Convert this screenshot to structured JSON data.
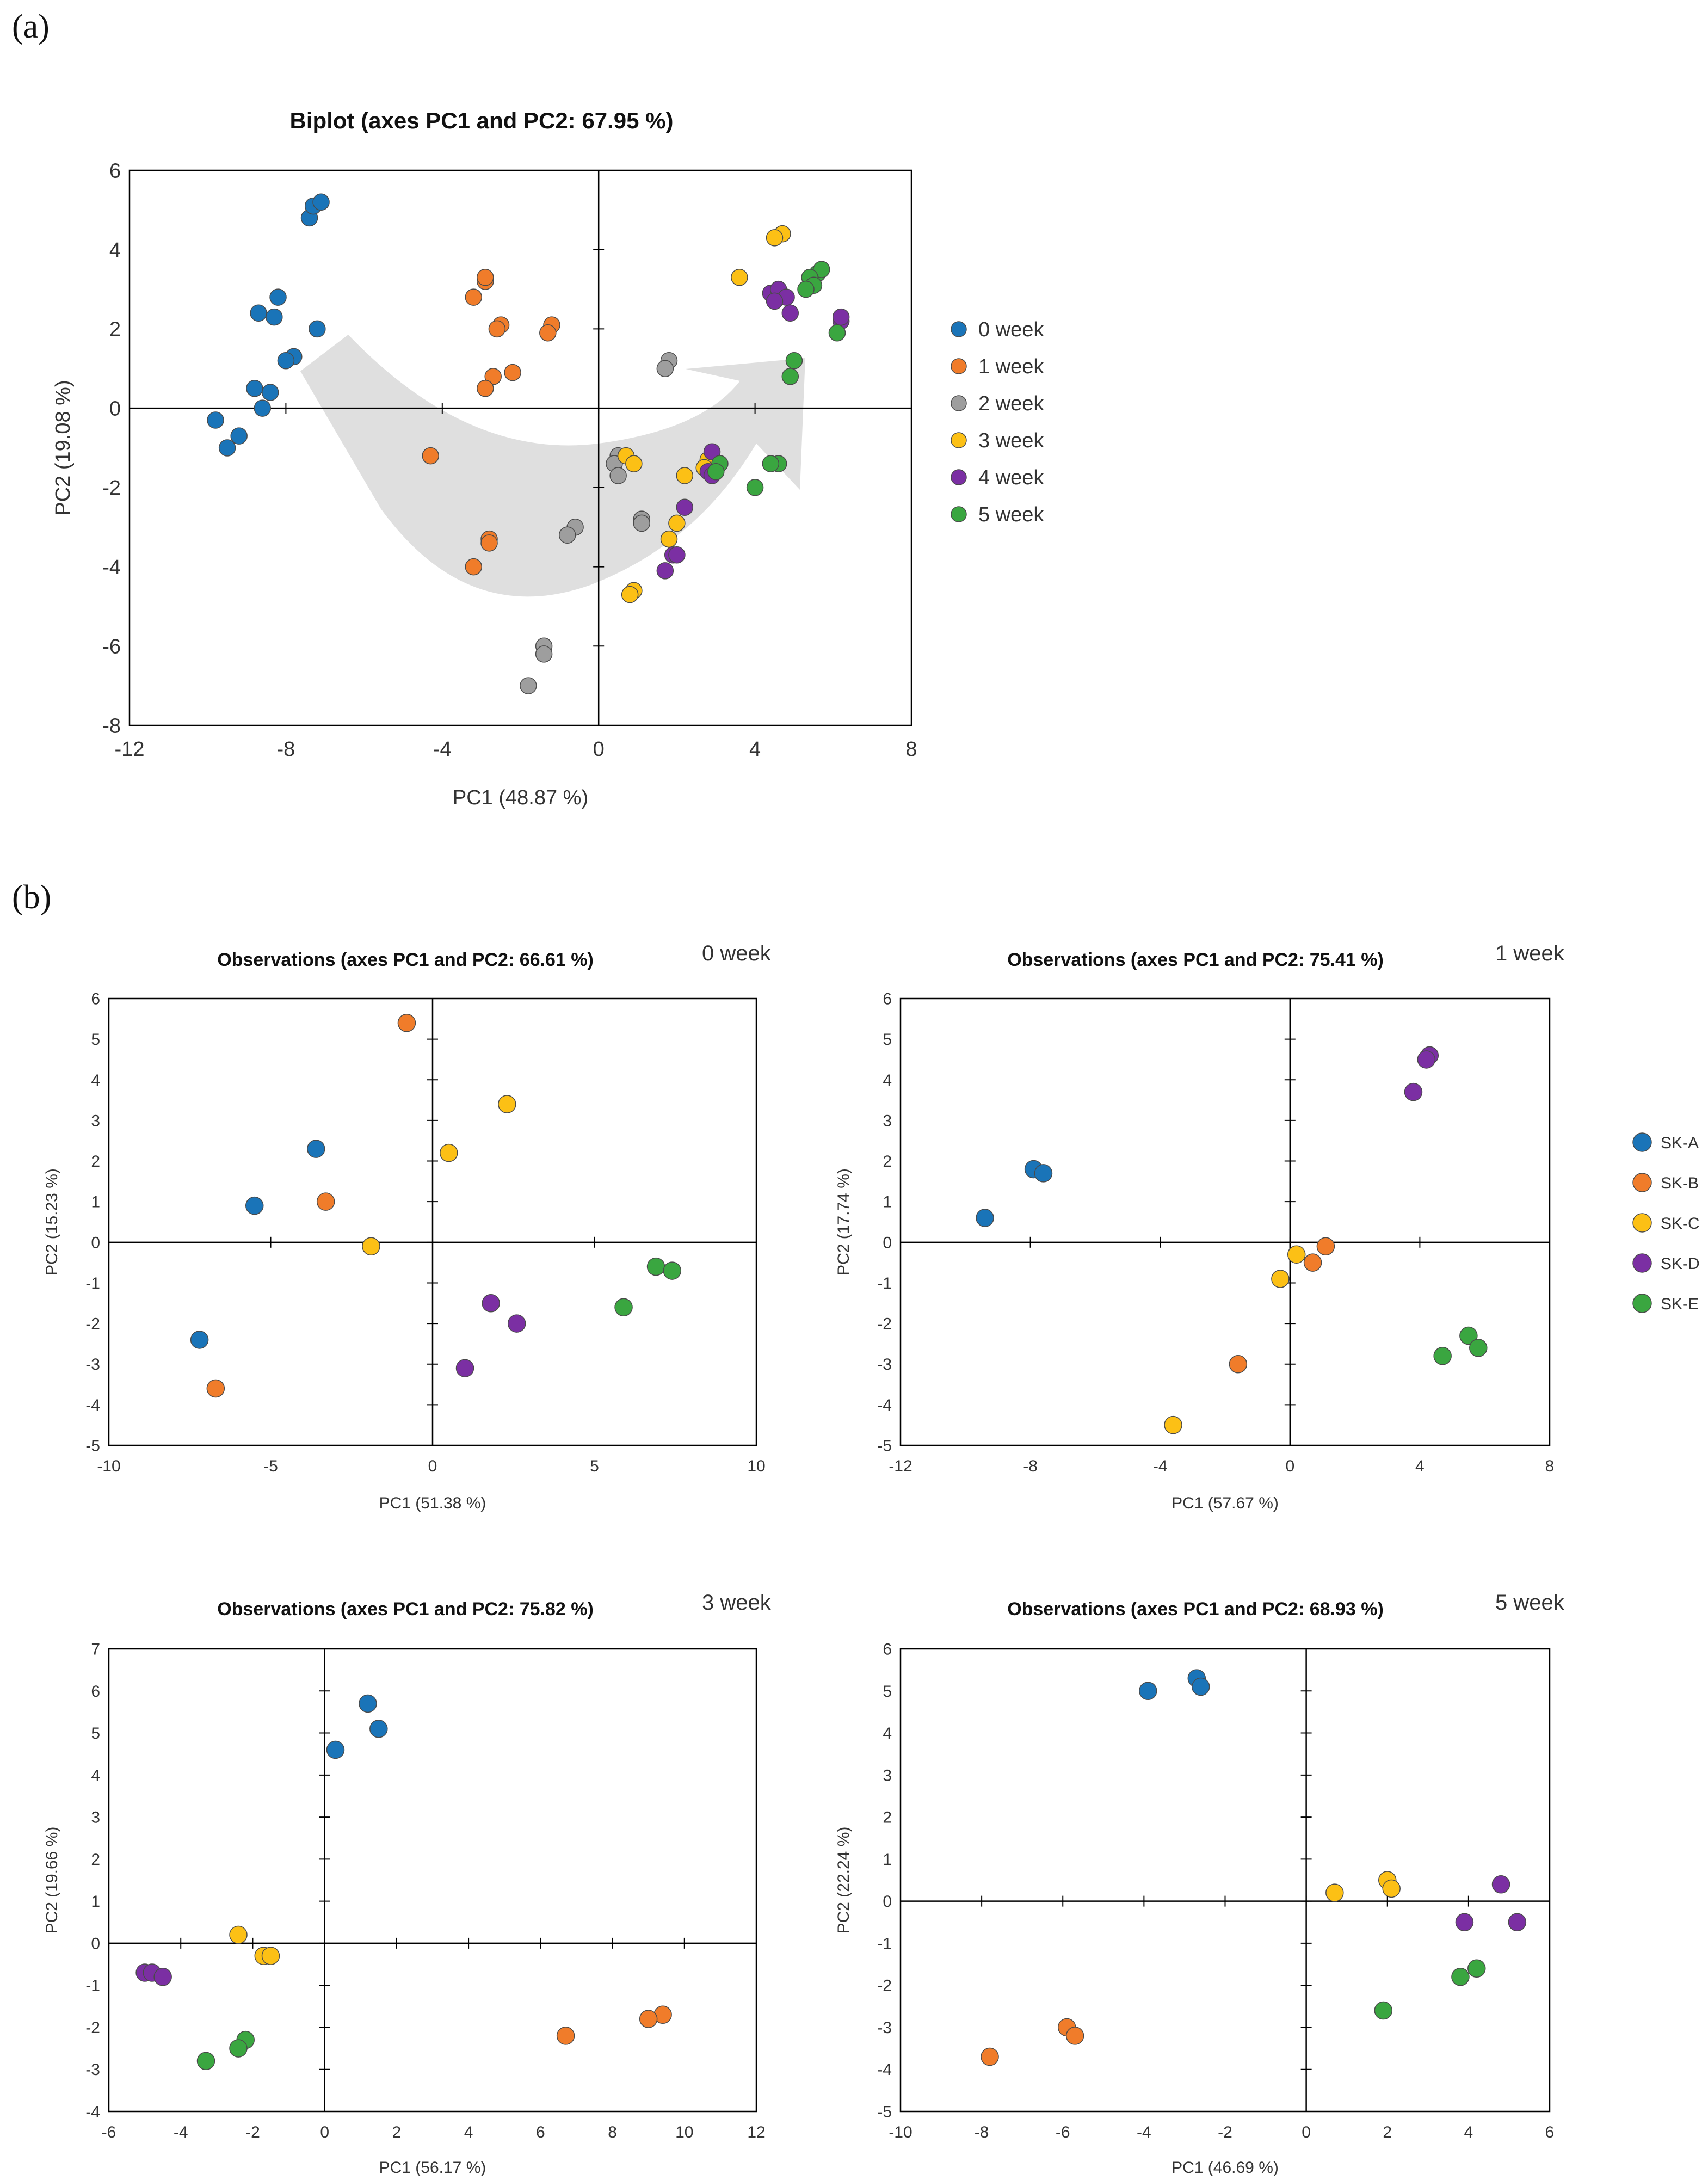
{
  "panels": {
    "a": "(a)",
    "b": "(b)"
  },
  "colors": {
    "0 week": "#1a74b8",
    "1 week": "#f07c2a",
    "2 week": "#9e9e9e",
    "3 week": "#fcc015",
    "4 week": "#7b2fa3",
    "5 week": "#3aa640",
    "SK-A": "#1a74b8",
    "SK-B": "#f07c2a",
    "SK-C": "#fcc015",
    "SK-D": "#7b2fa3",
    "SK-E": "#3aa640"
  },
  "legend_weeks": [
    "0 week",
    "1 week",
    "2 week",
    "3 week",
    "4 week",
    "5 week"
  ],
  "legend_samples": [
    "SK-A",
    "SK-B",
    "SK-C",
    "SK-D",
    "SK-E"
  ],
  "chart_data": [
    {
      "id": "biplot",
      "type": "scatter",
      "title": "Biplot (axes PC1 and PC2: 67.95 %)",
      "xlabel": "PC1 (48.87 %)",
      "ylabel": "PC2 (19.08 %)",
      "xlim": [
        -12,
        8
      ],
      "ylim": [
        -8,
        6
      ],
      "xticks": [
        -12,
        -8,
        -4,
        0,
        4,
        8
      ],
      "yticks": [
        -8,
        -6,
        -4,
        -2,
        0,
        2,
        4,
        6
      ],
      "annotation": "trend arrow from 0 week cluster through lower center toward 4-5 week cluster",
      "series": [
        {
          "name": "0 week",
          "points": [
            [
              -7.4,
              4.8
            ],
            [
              -7.3,
              5.1
            ],
            [
              -7.1,
              5.2
            ],
            [
              -8.2,
              2.8
            ],
            [
              -8.7,
              2.4
            ],
            [
              -8.3,
              2.3
            ],
            [
              -7.2,
              2.0
            ],
            [
              -7.8,
              1.3
            ],
            [
              -8.0,
              1.2
            ],
            [
              -8.8,
              0.5
            ],
            [
              -8.4,
              0.4
            ],
            [
              -8.6,
              0.0
            ],
            [
              -9.8,
              -0.3
            ],
            [
              -9.2,
              -0.7
            ],
            [
              -9.5,
              -1.0
            ]
          ]
        },
        {
          "name": "1 week",
          "points": [
            [
              -2.9,
              3.2
            ],
            [
              -2.9,
              3.3
            ],
            [
              -3.2,
              2.8
            ],
            [
              -2.5,
              2.1
            ],
            [
              -2.6,
              2.0
            ],
            [
              -1.2,
              2.1
            ],
            [
              -1.3,
              1.9
            ],
            [
              -2.7,
              0.8
            ],
            [
              -2.2,
              0.9
            ],
            [
              -2.9,
              0.5
            ],
            [
              -4.3,
              -1.2
            ],
            [
              -2.8,
              -3.3
            ],
            [
              -2.8,
              -3.4
            ],
            [
              -3.2,
              -4.0
            ]
          ]
        },
        {
          "name": "2 week",
          "points": [
            [
              1.8,
              1.2
            ],
            [
              1.7,
              1.0
            ],
            [
              0.5,
              -1.2
            ],
            [
              0.4,
              -1.4
            ],
            [
              0.5,
              -1.7
            ],
            [
              1.1,
              -2.8
            ],
            [
              1.1,
              -2.9
            ],
            [
              -0.6,
              -3.0
            ],
            [
              -0.8,
              -3.2
            ],
            [
              -1.4,
              -6.0
            ],
            [
              -1.4,
              -6.2
            ],
            [
              -1.8,
              -7.0
            ]
          ]
        },
        {
          "name": "3 week",
          "points": [
            [
              4.7,
              4.4
            ],
            [
              4.5,
              4.3
            ],
            [
              3.6,
              3.3
            ],
            [
              0.7,
              -1.2
            ],
            [
              0.9,
              -1.4
            ],
            [
              2.8,
              -1.3
            ],
            [
              2.2,
              -1.7
            ],
            [
              2.0,
              -2.9
            ],
            [
              1.8,
              -3.3
            ],
            [
              0.9,
              -4.6
            ],
            [
              0.8,
              -4.7
            ],
            [
              2.7,
              -1.5
            ]
          ]
        },
        {
          "name": "4 week",
          "points": [
            [
              4.4,
              2.9
            ],
            [
              4.6,
              3.0
            ],
            [
              4.8,
              2.8
            ],
            [
              4.5,
              2.7
            ],
            [
              4.9,
              2.4
            ],
            [
              6.2,
              2.2
            ],
            [
              6.2,
              2.3
            ],
            [
              2.9,
              -1.1
            ],
            [
              2.8,
              -1.6
            ],
            [
              2.9,
              -1.7
            ],
            [
              2.2,
              -2.5
            ],
            [
              1.9,
              -3.7
            ],
            [
              2.0,
              -3.7
            ],
            [
              1.7,
              -4.1
            ]
          ]
        },
        {
          "name": "5 week",
          "points": [
            [
              5.6,
              3.4
            ],
            [
              5.7,
              3.5
            ],
            [
              5.4,
              3.3
            ],
            [
              5.5,
              3.1
            ],
            [
              5.3,
              3.0
            ],
            [
              6.1,
              1.9
            ],
            [
              5.0,
              1.2
            ],
            [
              4.9,
              0.8
            ],
            [
              3.1,
              -1.4
            ],
            [
              4.6,
              -1.4
            ],
            [
              4.4,
              -1.4
            ],
            [
              4.0,
              -2.0
            ],
            [
              3.0,
              -1.6
            ]
          ]
        }
      ]
    },
    {
      "id": "week0",
      "type": "scatter",
      "title": "Observations (axes PC1 and PC2: 66.61 %)",
      "week_label": "0 week",
      "xlabel": "PC1 (51.38 %)",
      "ylabel": "PC2 (15.23 %)",
      "xlim": [
        -10,
        10
      ],
      "ylim": [
        -5,
        6
      ],
      "xticks": [
        -10,
        -5,
        0,
        5,
        10
      ],
      "yticks": [
        -5,
        -4,
        -3,
        -2,
        -1,
        0,
        1,
        2,
        3,
        4,
        5,
        6
      ],
      "series": [
        {
          "name": "SK-A",
          "points": [
            [
              -3.6,
              2.3
            ],
            [
              -5.5,
              0.9
            ],
            [
              -7.2,
              -2.4
            ]
          ]
        },
        {
          "name": "SK-B",
          "points": [
            [
              -0.8,
              5.4
            ],
            [
              -3.3,
              1.0
            ],
            [
              -6.7,
              -3.6
            ]
          ]
        },
        {
          "name": "SK-C",
          "points": [
            [
              2.3,
              3.4
            ],
            [
              0.5,
              2.2
            ],
            [
              -1.9,
              -0.1
            ]
          ]
        },
        {
          "name": "SK-D",
          "points": [
            [
              1.8,
              -1.5
            ],
            [
              2.6,
              -2.0
            ],
            [
              1.0,
              -3.1
            ]
          ]
        },
        {
          "name": "SK-E",
          "points": [
            [
              6.9,
              -0.6
            ],
            [
              7.4,
              -0.7
            ],
            [
              5.9,
              -1.6
            ]
          ]
        }
      ]
    },
    {
      "id": "week1",
      "type": "scatter",
      "title": "Observations (axes PC1 and PC2: 75.41 %)",
      "week_label": "1 week",
      "xlabel": "PC1 (57.67 %)",
      "ylabel": "PC2 (17.74 %)",
      "xlim": [
        -12,
        8
      ],
      "ylim": [
        -5,
        6
      ],
      "xticks": [
        -12,
        -8,
        -4,
        0,
        4,
        8
      ],
      "yticks": [
        -5,
        -4,
        -3,
        -2,
        -1,
        0,
        1,
        2,
        3,
        4,
        5,
        6
      ],
      "series": [
        {
          "name": "SK-A",
          "points": [
            [
              -7.9,
              1.8
            ],
            [
              -7.6,
              1.7
            ],
            [
              -9.4,
              0.6
            ]
          ]
        },
        {
          "name": "SK-B",
          "points": [
            [
              1.1,
              -0.1
            ],
            [
              0.7,
              -0.5
            ],
            [
              -1.6,
              -3.0
            ]
          ]
        },
        {
          "name": "SK-C",
          "points": [
            [
              0.2,
              -0.3
            ],
            [
              -0.3,
              -0.9
            ],
            [
              -3.6,
              -4.5
            ]
          ]
        },
        {
          "name": "SK-D",
          "points": [
            [
              4.3,
              4.6
            ],
            [
              4.2,
              4.5
            ],
            [
              3.8,
              3.7
            ]
          ]
        },
        {
          "name": "SK-E",
          "points": [
            [
              5.5,
              -2.3
            ],
            [
              5.8,
              -2.6
            ],
            [
              4.7,
              -2.8
            ]
          ]
        }
      ]
    },
    {
      "id": "week3",
      "type": "scatter",
      "title": "Observations (axes PC1 and PC2: 75.82 %)",
      "week_label": "3 week",
      "xlabel": "PC1 (56.17 %)",
      "ylabel": "PC2 (19.66 %)",
      "xlim": [
        -6,
        12
      ],
      "ylim": [
        -4,
        7
      ],
      "xticks": [
        -6,
        -4,
        -2,
        0,
        2,
        4,
        6,
        8,
        10,
        12
      ],
      "yticks": [
        -4,
        -3,
        -2,
        -1,
        0,
        1,
        2,
        3,
        4,
        5,
        6,
        7
      ],
      "series": [
        {
          "name": "SK-A",
          "points": [
            [
              1.2,
              5.7
            ],
            [
              1.5,
              5.1
            ],
            [
              0.3,
              4.6
            ]
          ]
        },
        {
          "name": "SK-B",
          "points": [
            [
              9.4,
              -1.7
            ],
            [
              9.0,
              -1.8
            ],
            [
              6.7,
              -2.2
            ]
          ]
        },
        {
          "name": "SK-C",
          "points": [
            [
              -2.4,
              0.2
            ],
            [
              -1.7,
              -0.3
            ],
            [
              -1.5,
              -0.3
            ]
          ]
        },
        {
          "name": "SK-D",
          "points": [
            [
              -5.0,
              -0.7
            ],
            [
              -4.8,
              -0.7
            ],
            [
              -4.5,
              -0.8
            ]
          ]
        },
        {
          "name": "SK-E",
          "points": [
            [
              -2.2,
              -2.3
            ],
            [
              -2.4,
              -2.5
            ],
            [
              -3.3,
              -2.8
            ]
          ]
        }
      ]
    },
    {
      "id": "week5",
      "type": "scatter",
      "title": "Observations (axes PC1 and PC2: 68.93 %)",
      "week_label": "5 week",
      "xlabel": "PC1 (46.69 %)",
      "ylabel": "PC2 (22.24 %)",
      "xlim": [
        -10,
        6
      ],
      "ylim": [
        -5,
        6
      ],
      "xticks": [
        -10,
        -8,
        -6,
        -4,
        -2,
        0,
        2,
        4,
        6
      ],
      "yticks": [
        -5,
        -4,
        -3,
        -2,
        -1,
        0,
        1,
        2,
        3,
        4,
        5,
        6
      ],
      "series": [
        {
          "name": "SK-A",
          "points": [
            [
              -2.7,
              5.3
            ],
            [
              -2.6,
              5.1
            ],
            [
              -3.9,
              5.0
            ]
          ]
        },
        {
          "name": "SK-B",
          "points": [
            [
              -5.9,
              -3.0
            ],
            [
              -5.7,
              -3.2
            ],
            [
              -7.8,
              -3.7
            ]
          ]
        },
        {
          "name": "SK-C",
          "points": [
            [
              2.0,
              0.5
            ],
            [
              2.1,
              0.3
            ],
            [
              0.7,
              0.2
            ]
          ]
        },
        {
          "name": "SK-D",
          "points": [
            [
              4.8,
              0.4
            ],
            [
              3.9,
              -0.5
            ],
            [
              5.2,
              -0.5
            ]
          ]
        },
        {
          "name": "SK-E",
          "points": [
            [
              4.2,
              -1.6
            ],
            [
              3.8,
              -1.8
            ],
            [
              1.9,
              -2.6
            ]
          ]
        }
      ]
    }
  ]
}
